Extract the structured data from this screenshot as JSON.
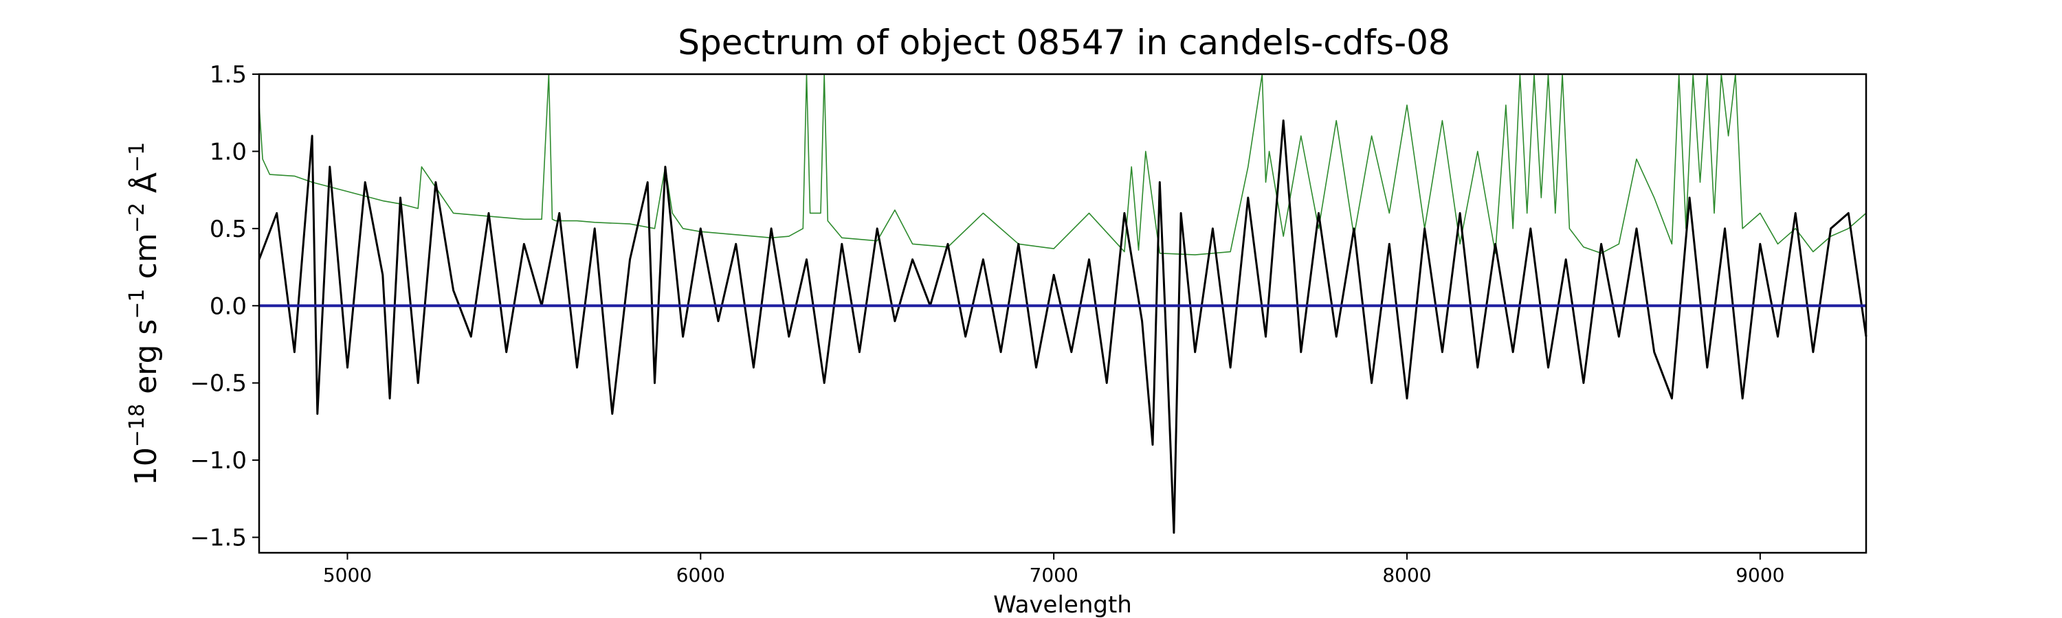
{
  "chart_data": {
    "type": "line",
    "title": "Spectrum of object 08547 in candels-cdfs-08",
    "xlabel": "Wavelength",
    "ylabel": {
      "base": "10",
      "exp1": "−18",
      "erg": " erg s",
      "exp2": "−1",
      "cm": " cm",
      "exp3": "−2",
      "ang": " Å",
      "exp4": "−1"
    },
    "xlim": [
      4750,
      9300
    ],
    "ylim": [
      -1.6,
      1.5
    ],
    "xticks": [
      5000,
      6000,
      7000,
      8000,
      9000
    ],
    "yticks": [
      -1.5,
      -1.0,
      -0.5,
      0.0,
      0.5,
      1.0,
      1.5
    ],
    "ytick_labels": [
      "−1.5",
      "−1.0",
      "−0.5",
      "0.0",
      "0.5",
      "1.0",
      "1.5"
    ],
    "grid": false,
    "legend": false,
    "colors": {
      "flux": "#000000",
      "error": "#2e8b2e",
      "zero": "#1f1fa0"
    },
    "series": [
      {
        "role": "flux",
        "x": [
          4750,
          4800,
          4850,
          4900,
          4915,
          4950,
          5000,
          5050,
          5100,
          5120,
          5150,
          5200,
          5250,
          5300,
          5350,
          5400,
          5450,
          5500,
          5550,
          5600,
          5650,
          5700,
          5750,
          5800,
          5850,
          5870,
          5900,
          5950,
          6000,
          6050,
          6100,
          6150,
          6200,
          6250,
          6300,
          6350,
          6400,
          6450,
          6500,
          6550,
          6600,
          6650,
          6700,
          6750,
          6800,
          6850,
          6900,
          6950,
          7000,
          7050,
          7100,
          7150,
          7200,
          7250,
          7280,
          7300,
          7320,
          7340,
          7360,
          7400,
          7450,
          7500,
          7550,
          7600,
          7650,
          7700,
          7750,
          7800,
          7850,
          7900,
          7950,
          8000,
          8050,
          8100,
          8150,
          8200,
          8250,
          8300,
          8350,
          8400,
          8450,
          8500,
          8550,
          8600,
          8650,
          8700,
          8750,
          8800,
          8850,
          8900,
          8950,
          9000,
          9050,
          9100,
          9150,
          9200,
          9250,
          9300
        ],
        "y": [
          0.3,
          0.6,
          -0.3,
          1.1,
          -0.7,
          0.9,
          -0.4,
          0.8,
          0.2,
          -0.6,
          0.7,
          -0.5,
          0.8,
          0.1,
          -0.2,
          0.6,
          -0.3,
          0.4,
          0.0,
          0.6,
          -0.4,
          0.5,
          -0.7,
          0.3,
          0.8,
          -0.5,
          0.9,
          -0.2,
          0.5,
          -0.1,
          0.4,
          -0.4,
          0.5,
          -0.2,
          0.3,
          -0.5,
          0.4,
          -0.3,
          0.5,
          -0.1,
          0.3,
          0.0,
          0.4,
          -0.2,
          0.3,
          -0.3,
          0.4,
          -0.4,
          0.2,
          -0.3,
          0.3,
          -0.5,
          0.6,
          -0.1,
          -0.9,
          0.8,
          -0.3,
          -1.47,
          0.6,
          -0.3,
          0.5,
          -0.4,
          0.7,
          -0.2,
          1.2,
          -0.3,
          0.6,
          -0.2,
          0.5,
          -0.5,
          0.4,
          -0.6,
          0.5,
          -0.3,
          0.6,
          -0.4,
          0.4,
          -0.3,
          0.5,
          -0.4,
          0.3,
          -0.5,
          0.4,
          -0.2,
          0.5,
          -0.3,
          -0.6,
          0.7,
          -0.4,
          0.5,
          -0.6,
          0.4,
          -0.2,
          0.6,
          -0.3,
          0.5,
          0.6,
          -0.2
        ]
      },
      {
        "role": "error",
        "x": [
          4750,
          4760,
          4780,
          4850,
          4900,
          5000,
          5100,
          5150,
          5200,
          5210,
          5300,
          5400,
          5500,
          5550,
          5570,
          5580,
          5590,
          5650,
          5700,
          5800,
          5870,
          5900,
          5920,
          5950,
          6000,
          6100,
          6200,
          6250,
          6290,
          6300,
          6310,
          6340,
          6350,
          6360,
          6400,
          6500,
          6550,
          6600,
          6700,
          6800,
          6900,
          7000,
          7100,
          7200,
          7220,
          7240,
          7260,
          7300,
          7400,
          7500,
          7550,
          7590,
          7600,
          7610,
          7650,
          7700,
          7750,
          7800,
          7850,
          7900,
          7950,
          8000,
          8050,
          8100,
          8150,
          8200,
          8250,
          8280,
          8300,
          8320,
          8340,
          8360,
          8380,
          8400,
          8420,
          8440,
          8460,
          8500,
          8550,
          8600,
          8650,
          8700,
          8750,
          8770,
          8790,
          8810,
          8830,
          8850,
          8870,
          8890,
          8910,
          8930,
          8950,
          9000,
          9050,
          9100,
          9150,
          9200,
          9250,
          9300
        ],
        "y": [
          1.3,
          0.95,
          0.85,
          0.84,
          0.8,
          0.74,
          0.68,
          0.66,
          0.63,
          0.9,
          0.6,
          0.58,
          0.56,
          0.56,
          1.5,
          0.56,
          0.55,
          0.55,
          0.54,
          0.53,
          0.5,
          0.9,
          0.6,
          0.5,
          0.48,
          0.46,
          0.44,
          0.45,
          0.5,
          1.5,
          0.6,
          0.6,
          1.5,
          0.55,
          0.44,
          0.42,
          0.62,
          0.4,
          0.38,
          0.6,
          0.4,
          0.37,
          0.6,
          0.35,
          0.9,
          0.36,
          1.0,
          0.34,
          0.33,
          0.35,
          0.9,
          1.5,
          0.8,
          1.0,
          0.45,
          1.1,
          0.5,
          1.2,
          0.45,
          1.1,
          0.6,
          1.3,
          0.5,
          1.2,
          0.4,
          1.0,
          0.34,
          1.3,
          0.5,
          1.5,
          0.6,
          1.5,
          0.7,
          1.5,
          0.6,
          1.5,
          0.5,
          0.38,
          0.34,
          0.4,
          0.95,
          0.7,
          0.4,
          1.5,
          0.5,
          1.5,
          0.8,
          1.5,
          0.6,
          1.5,
          1.1,
          1.5,
          0.5,
          0.6,
          0.4,
          0.5,
          0.35,
          0.45,
          0.5,
          0.6
        ]
      },
      {
        "role": "zero",
        "x": [
          4750,
          9300
        ],
        "y": [
          0.0,
          0.0
        ]
      }
    ]
  }
}
